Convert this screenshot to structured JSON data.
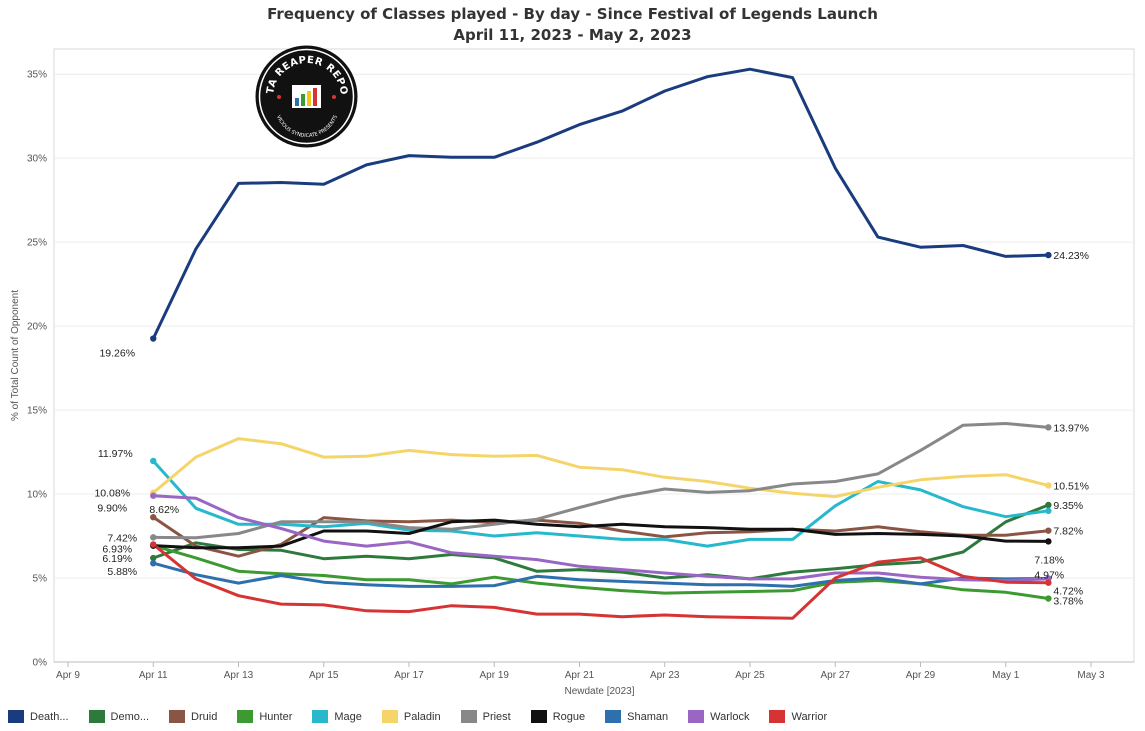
{
  "title": "Frequency of Classes played - By day - Since Festival of Legends Launch",
  "subtitle": "April 11, 2023 - May 2, 2023",
  "logo": {
    "text_top": "DATA REAPER REPORT",
    "text_bottom": "VICIOUS SYNDICATE PRESENTS"
  },
  "chart_data": {
    "type": "line",
    "xlabel": "Newdate [2023]",
    "ylabel": "% of Total Count of Opponent",
    "x_ticks": [
      "Apr 9",
      "Apr 11",
      "Apr 13",
      "Apr 15",
      "Apr 17",
      "Apr 19",
      "Apr 21",
      "Apr 23",
      "Apr 25",
      "Apr 27",
      "Apr 29",
      "May 1",
      "May 3"
    ],
    "y_ticks": [
      "0%",
      "5%",
      "10%",
      "15%",
      "20%",
      "25%",
      "30%",
      "35%"
    ],
    "xlim": [
      "2023-04-09",
      "2023-05-03"
    ],
    "ylim": [
      0,
      36.5
    ],
    "grid": "horizontal",
    "legend_position": "bottom",
    "x": [
      "2023-04-11",
      "2023-04-12",
      "2023-04-13",
      "2023-04-14",
      "2023-04-15",
      "2023-04-16",
      "2023-04-17",
      "2023-04-18",
      "2023-04-19",
      "2023-04-20",
      "2023-04-21",
      "2023-04-22",
      "2023-04-23",
      "2023-04-24",
      "2023-04-25",
      "2023-04-26",
      "2023-04-27",
      "2023-04-28",
      "2023-04-29",
      "2023-04-30",
      "2023-05-01",
      "2023-05-02"
    ],
    "series": [
      {
        "name": "Death...",
        "color": "#1a3c7e",
        "values": [
          19.26,
          24.6,
          28.5,
          28.55,
          28.45,
          29.6,
          30.15,
          30.05,
          30.05,
          30.95,
          32.0,
          32.8,
          34.0,
          34.85,
          35.3,
          34.8,
          29.4,
          25.3,
          24.7,
          24.8,
          24.15,
          24.23
        ],
        "first_label": "19.26%",
        "last_label": "24.23%"
      },
      {
        "name": "Demo...",
        "color": "#2e7a3c",
        "values": [
          6.19,
          7.1,
          6.7,
          6.65,
          6.15,
          6.3,
          6.15,
          6.4,
          6.2,
          5.4,
          5.5,
          5.35,
          5.0,
          5.2,
          4.95,
          5.35,
          5.55,
          5.8,
          5.95,
          6.55,
          8.35,
          9.35
        ],
        "first_label": "6.19%",
        "last_label": "9.35%"
      },
      {
        "name": "Druid",
        "color": "#8b5545",
        "values": [
          8.62,
          6.9,
          6.3,
          7.0,
          8.6,
          8.4,
          8.35,
          8.45,
          8.3,
          8.45,
          8.25,
          7.8,
          7.45,
          7.7,
          7.75,
          7.9,
          7.8,
          8.05,
          7.75,
          7.55,
          7.55,
          7.82
        ],
        "first_label": "8.62%",
        "last_label": "7.82%"
      },
      {
        "name": "Hunter",
        "color": "#3c9a31",
        "values": [
          6.93,
          6.2,
          5.4,
          5.25,
          5.15,
          4.9,
          4.9,
          4.65,
          5.05,
          4.7,
          4.45,
          4.25,
          4.1,
          4.15,
          4.2,
          4.25,
          4.75,
          4.85,
          4.65,
          4.3,
          4.15,
          3.78
        ],
        "first_label": "6.93%",
        "last_label": "3.78%"
      },
      {
        "name": "Mage",
        "color": "#27b8cc",
        "values": [
          11.97,
          9.15,
          8.2,
          8.2,
          8.05,
          8.25,
          7.85,
          7.8,
          7.5,
          7.7,
          7.5,
          7.3,
          7.3,
          6.9,
          7.3,
          7.3,
          9.3,
          10.75,
          10.25,
          9.25,
          8.65,
          9.0
        ],
        "first_label": "11.97%",
        "last_label": ""
      },
      {
        "name": "Paladin",
        "color": "#f5d56a",
        "values": [
          10.08,
          12.2,
          13.3,
          13.0,
          12.2,
          12.25,
          12.6,
          12.35,
          12.25,
          12.3,
          11.6,
          11.45,
          11.0,
          10.75,
          10.35,
          10.05,
          9.85,
          10.4,
          10.85,
          11.05,
          11.15,
          10.51
        ],
        "first_label": "10.08%",
        "last_label": "10.51%"
      },
      {
        "name": "Priest",
        "color": "#888888",
        "values": [
          7.42,
          7.4,
          7.65,
          8.35,
          8.35,
          8.35,
          8.0,
          7.9,
          8.2,
          8.5,
          9.2,
          9.85,
          10.3,
          10.1,
          10.2,
          10.6,
          10.75,
          11.2,
          12.6,
          14.1,
          14.2,
          13.97
        ],
        "first_label": "7.42%",
        "last_label": "13.97%"
      },
      {
        "name": "Rogue",
        "color": "#111111",
        "values": [
          6.93,
          6.8,
          6.8,
          6.9,
          7.8,
          7.8,
          7.65,
          8.35,
          8.45,
          8.2,
          8.05,
          8.2,
          8.05,
          8.0,
          7.9,
          7.9,
          7.6,
          7.65,
          7.6,
          7.5,
          7.2,
          7.18
        ],
        "first_label": "",
        "last_label": "7.18%"
      },
      {
        "name": "Shaman",
        "color": "#2e6fae",
        "values": [
          5.88,
          5.2,
          4.7,
          5.15,
          4.75,
          4.6,
          4.5,
          4.5,
          4.55,
          5.1,
          4.9,
          4.8,
          4.7,
          4.6,
          4.6,
          4.5,
          4.85,
          5.0,
          4.65,
          5.0,
          4.95,
          4.97
        ],
        "first_label": "5.88%",
        "last_label": "4.97%"
      },
      {
        "name": "Warlock",
        "color": "#9966c4",
        "values": [
          9.9,
          9.75,
          8.6,
          7.95,
          7.2,
          6.9,
          7.15,
          6.5,
          6.3,
          6.1,
          5.7,
          5.5,
          5.3,
          5.1,
          4.95,
          4.95,
          5.3,
          5.3,
          5.05,
          4.9,
          4.85,
          4.95
        ],
        "first_label": "9.90%",
        "last_label": ""
      },
      {
        "name": "Warrior",
        "color": "#d63434",
        "values": [
          7.0,
          4.95,
          3.95,
          3.45,
          3.4,
          3.05,
          3.0,
          3.35,
          3.25,
          2.85,
          2.85,
          2.7,
          2.8,
          2.7,
          2.65,
          2.6,
          5.0,
          5.95,
          6.2,
          5.1,
          4.75,
          4.72
        ],
        "first_label": "",
        "last_label": "4.72%"
      }
    ]
  }
}
